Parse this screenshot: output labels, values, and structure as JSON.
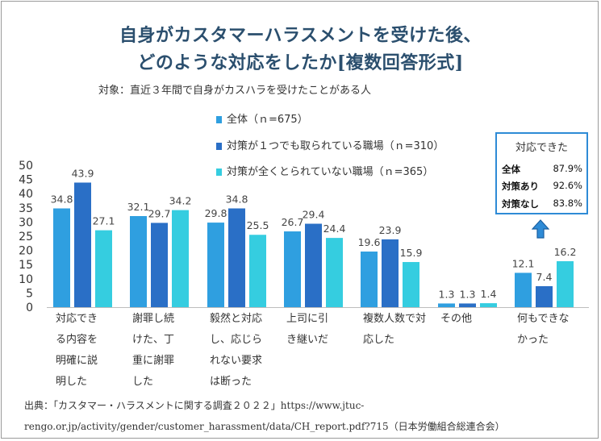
{
  "title_line1": "自身がカスタマーハラスメントを受けた後、",
  "title_line2": "どのような対応をしたか[複数回答形式]",
  "subtitle": "対象：直近３年間で自身がカスハラを受けたことがある人",
  "source_line1": "出典：「カスタマー・ハラスメントに関する調査２０２２」https://www.jtuc-",
  "source_line2": "rengo.or.jp/activity/gender/customer_harassment/data/CH_report.pdf?715（日本労働組合総連合会）",
  "callout": {
    "title": "対応できた",
    "rows": [
      {
        "label": "全体",
        "value": "87.9%"
      },
      {
        "label": "対策あり",
        "value": "92.6%"
      },
      {
        "label": "対策なし",
        "value": "83.8%"
      }
    ],
    "border_color": "#2e8bd6",
    "arrow_color": "#2e8bd6",
    "arrow_icon": "up-arrow-icon"
  },
  "chart_data": {
    "type": "bar",
    "ylim": [
      0,
      50
    ],
    "yticks": [
      0,
      5,
      10,
      15,
      20,
      25,
      30,
      35,
      40,
      45,
      50
    ],
    "grid": false,
    "legend_position": "top-center",
    "categories": [
      [
        "対応でき",
        "る内容を",
        "明確に説",
        "明した"
      ],
      [
        "謝罪し続",
        "けた、丁",
        "重に謝罪",
        "した"
      ],
      [
        "毅然と対応",
        "し、応じら",
        "れない要求",
        "は断った"
      ],
      [
        "上司に引",
        "き継いだ"
      ],
      [
        "複数人数で対",
        "応した"
      ],
      [
        "その他"
      ],
      [
        "何もできな",
        "かった"
      ]
    ],
    "series": [
      {
        "name": "全体（ｎ=675）",
        "color": "#2f9fe0",
        "values": [
          34.8,
          32.1,
          29.8,
          26.7,
          19.6,
          1.3,
          12.1
        ]
      },
      {
        "name": "対策が１つでも取られている職場（ｎ=310）",
        "color": "#2a6fc6",
        "values": [
          43.9,
          29.7,
          34.8,
          29.4,
          23.9,
          1.3,
          7.4
        ]
      },
      {
        "name": "対策が全くとられていない職場（ｎ=365）",
        "color": "#35cde0",
        "values": [
          27.1,
          34.2,
          25.5,
          24.4,
          15.9,
          1.4,
          16.2
        ]
      }
    ]
  }
}
